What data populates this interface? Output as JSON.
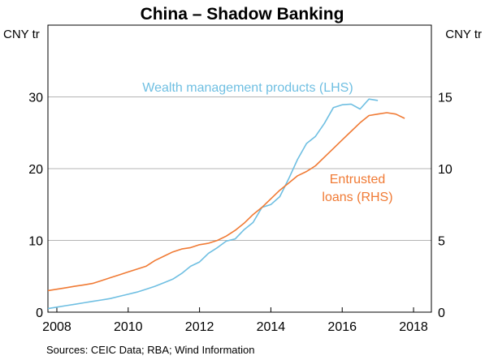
{
  "chart_data": {
    "type": "line",
    "title": "China – Shadow Banking",
    "left_unit": "CNY tr",
    "right_unit": "CNY tr",
    "source": "Sources:  CEIC Data; RBA; Wind Information",
    "x_ticks": [
      "2008",
      "2010",
      "2012",
      "2014",
      "2016",
      "2018"
    ],
    "x_range": [
      2007.75,
      2018.5
    ],
    "left_axis": {
      "range": [
        0,
        40
      ],
      "ticks": [
        "0",
        "10",
        "20",
        "30"
      ]
    },
    "right_axis": {
      "range": [
        0,
        20
      ],
      "ticks": [
        "0",
        "5",
        "10",
        "15"
      ]
    },
    "grid": true,
    "series": [
      {
        "name": "Wealth management products (LHS)",
        "axis": "left",
        "color": "#6fbfe2",
        "annotation": "Wealth management products (LHS)",
        "x": [
          2007.75,
          2008.0,
          2008.25,
          2008.5,
          2008.75,
          2009.0,
          2009.25,
          2009.5,
          2009.75,
          2010.0,
          2010.25,
          2010.5,
          2010.75,
          2011.0,
          2011.25,
          2011.5,
          2011.75,
          2012.0,
          2012.25,
          2012.5,
          2012.75,
          2013.0,
          2013.25,
          2013.5,
          2013.75,
          2014.0,
          2014.25,
          2014.5,
          2014.75,
          2015.0,
          2015.25,
          2015.5,
          2015.75,
          2016.0,
          2016.25,
          2016.5,
          2016.75,
          2017.0,
          2017.25,
          2017.5,
          2017.75
        ],
        "values": [
          0.5,
          0.7,
          0.9,
          1.1,
          1.3,
          1.5,
          1.7,
          1.9,
          2.2,
          2.5,
          2.8,
          3.2,
          3.6,
          4.1,
          4.6,
          5.4,
          6.4,
          7.0,
          8.2,
          9.0,
          9.9,
          10.2,
          11.5,
          12.5,
          14.6,
          15.0,
          16.1,
          18.6,
          21.3,
          23.5,
          24.5,
          26.3,
          28.5,
          28.9,
          29.0,
          28.3,
          29.7,
          29.5,
          null,
          null,
          null
        ]
      },
      {
        "name": "Entrusted loans (RHS)",
        "axis": "right",
        "color": "#f07a34",
        "annotation_line1": "Entrusted",
        "annotation_line2": "loans (RHS)",
        "x": [
          2007.75,
          2008.0,
          2008.25,
          2008.5,
          2008.75,
          2009.0,
          2009.25,
          2009.5,
          2009.75,
          2010.0,
          2010.25,
          2010.5,
          2010.75,
          2011.0,
          2011.25,
          2011.5,
          2011.75,
          2012.0,
          2012.25,
          2012.5,
          2012.75,
          2013.0,
          2013.25,
          2013.5,
          2013.75,
          2014.0,
          2014.25,
          2014.5,
          2014.75,
          2015.0,
          2015.25,
          2015.5,
          2015.75,
          2016.0,
          2016.25,
          2016.5,
          2016.75,
          2017.0,
          2017.25,
          2017.5,
          2017.75
        ],
        "values": [
          1.5,
          1.6,
          1.7,
          1.8,
          1.9,
          2.0,
          2.2,
          2.4,
          2.6,
          2.8,
          3.0,
          3.2,
          3.6,
          3.9,
          4.2,
          4.4,
          4.5,
          4.7,
          4.8,
          5.0,
          5.3,
          5.7,
          6.2,
          6.8,
          7.3,
          7.9,
          8.5,
          9.0,
          9.5,
          9.8,
          10.2,
          10.8,
          11.4,
          12.0,
          12.6,
          13.2,
          13.7,
          13.8,
          13.9,
          13.8,
          13.5
        ]
      }
    ]
  }
}
